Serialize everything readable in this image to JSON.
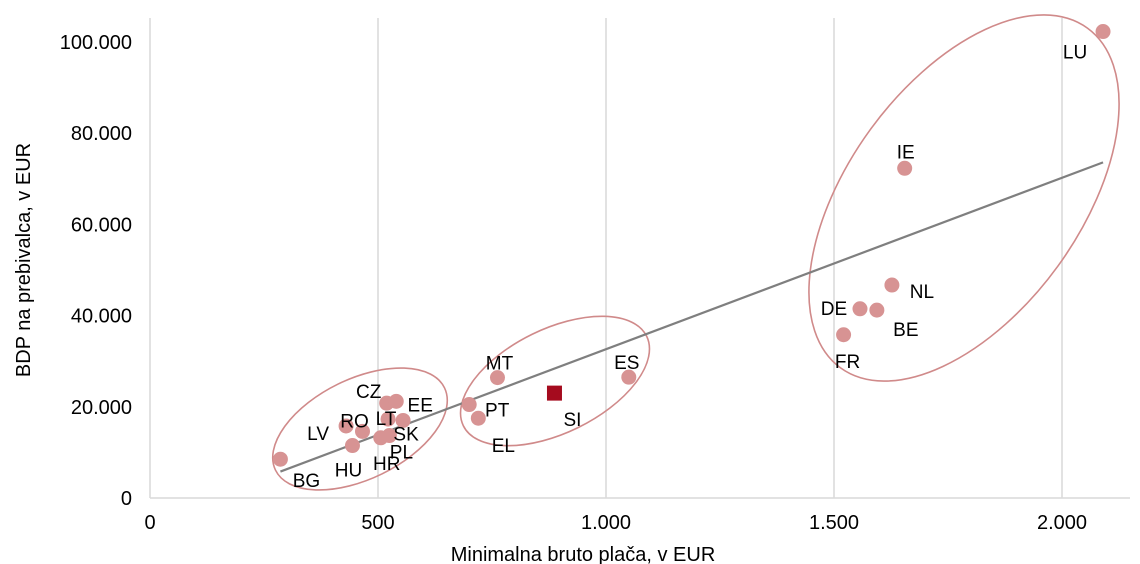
{
  "chart_data": {
    "type": "scatter",
    "title": "",
    "xlabel": "Minimalna bruto plača, v EUR",
    "ylabel": "BDP na prebivalca, v EUR",
    "xlim": [
      0,
      2150
    ],
    "ylim": [
      0,
      105000
    ],
    "xticks": [
      0,
      500,
      1000,
      1500,
      2000
    ],
    "xtick_labels": [
      "0",
      "500",
      "1.000",
      "1.500",
      "2.000"
    ],
    "yticks": [
      0,
      20000,
      40000,
      60000,
      80000,
      100000
    ],
    "ytick_labels": [
      "0",
      "20.000",
      "40.000",
      "60.000",
      "80.000",
      "100.000"
    ],
    "grid": "vertical",
    "colors": {
      "point": "#d79393",
      "highlight": "#a50b1e",
      "trend": "#7f7f7f",
      "ellipse": "#d08a8a",
      "grid": "#d9d9d9"
    },
    "points": [
      {
        "label": "BG",
        "x": 286,
        "y": 8500
      },
      {
        "label": "LV",
        "x": 430,
        "y": 15800
      },
      {
        "label": "HU",
        "x": 444,
        "y": 11500
      },
      {
        "label": "RO",
        "x": 466,
        "y": 14600
      },
      {
        "label": "HR",
        "x": 506,
        "y": 13200
      },
      {
        "label": "CZ",
        "x": 519,
        "y": 20800
      },
      {
        "label": "LT",
        "x": 522,
        "y": 17300
      },
      {
        "label": "PL",
        "x": 525,
        "y": 13700
      },
      {
        "label": "EE",
        "x": 540,
        "y": 21200
      },
      {
        "label": "SK",
        "x": 555,
        "y": 17000
      },
      {
        "label": "PT",
        "x": 700,
        "y": 20500
      },
      {
        "label": "EL",
        "x": 720,
        "y": 17500
      },
      {
        "label": "MT",
        "x": 762,
        "y": 26400
      },
      {
        "label": "ES",
        "x": 1050,
        "y": 26500
      },
      {
        "label": "FR",
        "x": 1521,
        "y": 35800
      },
      {
        "label": "DE",
        "x": 1557,
        "y": 41500
      },
      {
        "label": "BE",
        "x": 1594,
        "y": 41200
      },
      {
        "label": "NL",
        "x": 1627,
        "y": 46700
      },
      {
        "label": "IE",
        "x": 1655,
        "y": 72300
      },
      {
        "label": "LU",
        "x": 2090,
        "y": 102300
      }
    ],
    "highlight": [
      {
        "label": "SI",
        "x": 887,
        "y": 23000
      }
    ],
    "trendline": [
      [
        286,
        5800
      ],
      [
        2090,
        73600
      ]
    ]
  }
}
